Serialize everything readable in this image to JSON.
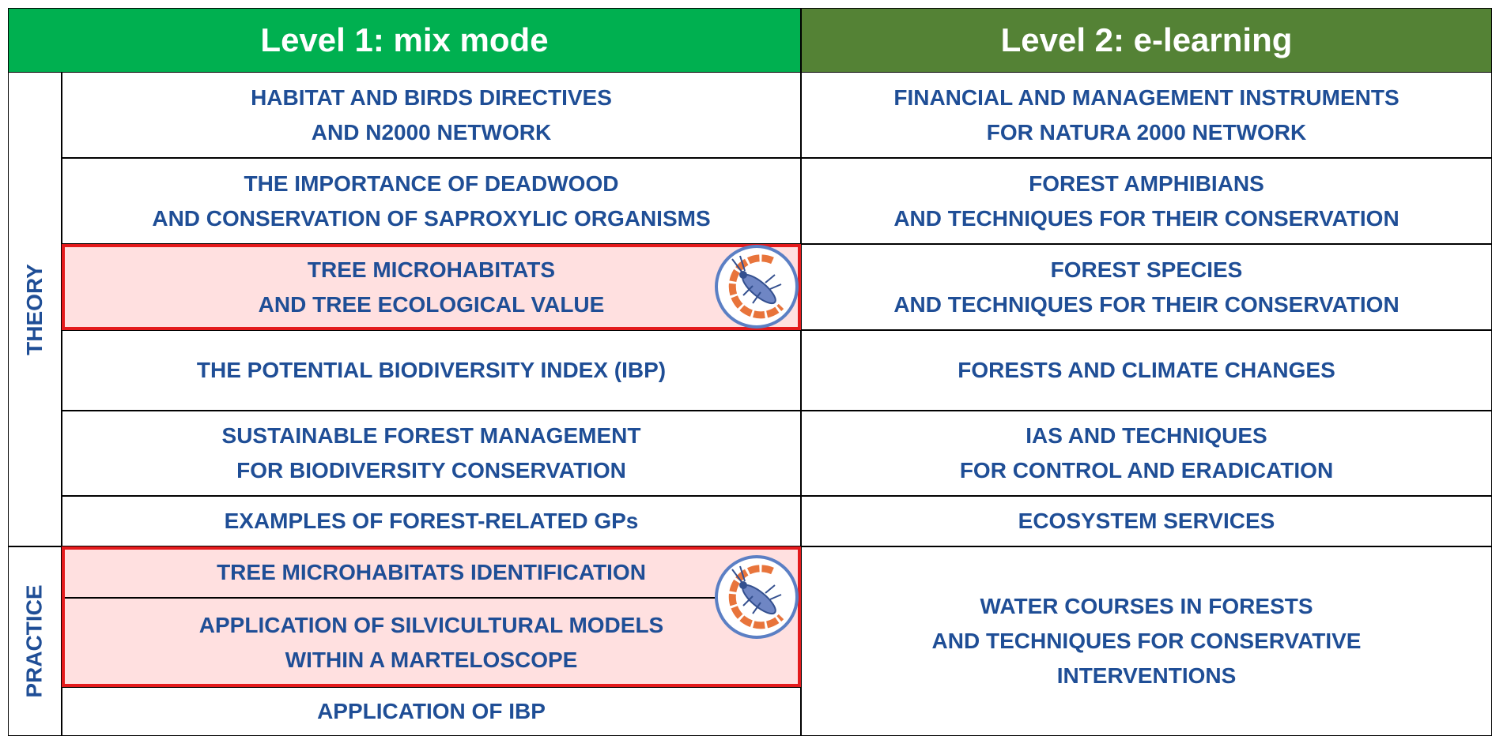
{
  "header": {
    "level1": "Level 1: mix mode",
    "level2": "Level 2: e-learning"
  },
  "theory": {
    "label": "THEORY",
    "rows": [
      {
        "left": [
          "HABITAT AND BIRDS DIRECTIVES",
          "AND N2000 NETWORK"
        ],
        "right": [
          "FINANCIAL AND MANAGEMENT INSTRUMENTS",
          "FOR NATURA 2000 NETWORK"
        ]
      },
      {
        "left": [
          "THE IMPORTANCE OF DEADWOOD",
          "AND CONSERVATION OF SAPROXYLIC ORGANISMS"
        ],
        "right": [
          "FOREST AMPHIBIANS",
          "AND TECHNIQUES FOR THEIR CONSERVATION"
        ]
      },
      {
        "left": [
          "TREE MICROHABITATS",
          "AND TREE ECOLOGICAL VALUE"
        ],
        "right": [
          "FOREST SPECIES",
          "AND TECHNIQUES FOR THEIR CONSERVATION"
        ]
      },
      {
        "left": [
          "THE POTENTIAL BIODIVERSITY INDEX (IBP)"
        ],
        "right": [
          "FORESTS AND CLIMATE CHANGES"
        ]
      },
      {
        "left": [
          "SUSTAINABLE FOREST MANAGEMENT",
          "FOR BIODIVERSITY CONSERVATION"
        ],
        "right": [
          "IAS AND TECHNIQUES",
          "FOR CONTROL AND ERADICATION"
        ]
      },
      {
        "left": [
          "EXAMPLES OF FOREST-RELATED GPs"
        ],
        "right": [
          "ECOSYSTEM SERVICES"
        ]
      }
    ]
  },
  "practice": {
    "label": "PRACTICE",
    "left": [
      [
        "TREE MICROHABITATS IDENTIFICATION"
      ],
      [
        "APPLICATION OF SILVICULTURAL MODELS",
        "WITHIN A MARTELOSCOPE"
      ],
      [
        "APPLICATION OF IBP"
      ]
    ],
    "right": [
      "WATER COURSES IN FORESTS",
      "AND TECHNIQUES FOR CONSERVATIVE",
      "INTERVENTIONS"
    ]
  }
}
